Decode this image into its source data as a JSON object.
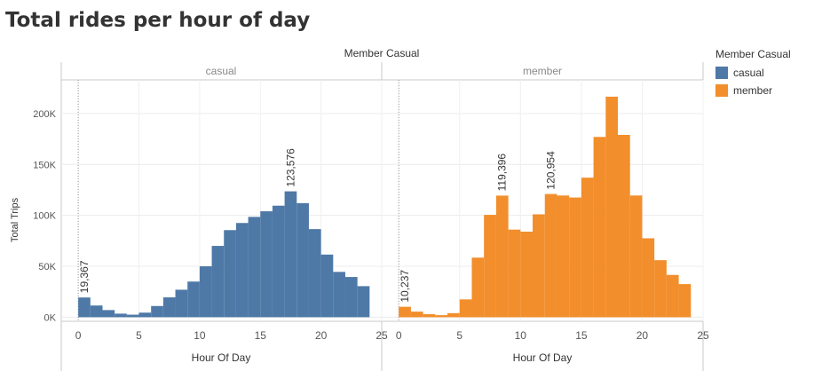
{
  "page_title": "Total rides per hour of day",
  "legend": {
    "title": "Member Casual",
    "items": [
      {
        "label": "casual",
        "color": "#4e79a7"
      },
      {
        "label": "member",
        "color": "#f28e2b"
      }
    ]
  },
  "chart_data": {
    "type": "bar",
    "column_header": "Member Casual",
    "xlabel": "Hour Of Day",
    "ylabel": "Total Trips",
    "xlim": [
      -1.4,
      25
    ],
    "ylim": [
      -4000,
      233000
    ],
    "x_ticks": [
      0,
      5,
      10,
      15,
      20,
      25
    ],
    "y_ticks": [
      {
        "value": 0,
        "label": "0K"
      },
      {
        "value": 50000,
        "label": "50K"
      },
      {
        "value": 100000,
        "label": "100K"
      },
      {
        "value": 150000,
        "label": "150K"
      },
      {
        "value": 200000,
        "label": "200K"
      }
    ],
    "hours": [
      0,
      1,
      2,
      3,
      4,
      5,
      6,
      7,
      8,
      9,
      10,
      11,
      12,
      13,
      14,
      15,
      16,
      17,
      18,
      19,
      20,
      21,
      22,
      23
    ],
    "series": [
      {
        "name": "casual",
        "color": "#4e79a7",
        "values": [
          19367,
          11500,
          7000,
          3500,
          2500,
          4500,
          11000,
          19500,
          27000,
          35000,
          50000,
          70000,
          85500,
          92500,
          98500,
          104000,
          109500,
          123576,
          112000,
          86500,
          61500,
          44500,
          39500,
          30500
        ],
        "labels": [
          {
            "hour": 0,
            "text": "19,367"
          },
          {
            "hour": 17,
            "text": "123,576"
          }
        ]
      },
      {
        "name": "member",
        "color": "#f28e2b",
        "values": [
          10237,
          5500,
          3000,
          2000,
          4000,
          17500,
          58500,
          100500,
          119396,
          86000,
          84000,
          101000,
          120954,
          119500,
          117500,
          137000,
          177000,
          216500,
          179000,
          119500,
          77500,
          56000,
          41500,
          32500
        ],
        "labels": [
          {
            "hour": 0,
            "text": "10,237"
          },
          {
            "hour": 8,
            "text": "119,396"
          },
          {
            "hour": 12,
            "text": "120,954"
          }
        ]
      }
    ]
  }
}
